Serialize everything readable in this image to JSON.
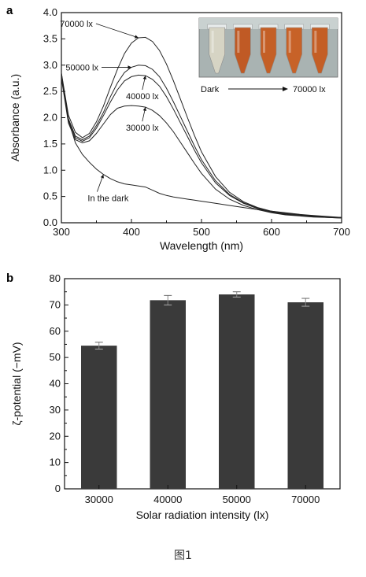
{
  "caption": "图1",
  "chart_data": [
    {
      "type": "line",
      "panel": "a",
      "xlabel": "Wavelength (nm)",
      "ylabel": "Absorbance (a.u.)",
      "xlim": [
        300,
        700
      ],
      "ylim": [
        0,
        4.0
      ],
      "xticks": [
        300,
        400,
        500,
        600,
        700
      ],
      "yticks": [
        0.0,
        0.5,
        1.0,
        1.5,
        2.0,
        2.5,
        3.0,
        3.5,
        4.0
      ],
      "grid": false,
      "series": [
        {
          "name": "70000 lx",
          "x": [
            300,
            310,
            320,
            330,
            340,
            350,
            360,
            370,
            380,
            390,
            400,
            410,
            420,
            430,
            440,
            450,
            460,
            470,
            480,
            490,
            500,
            520,
            540,
            560,
            580,
            600,
            620,
            640,
            660,
            680,
            700
          ],
          "y": [
            2.85,
            2.05,
            1.72,
            1.62,
            1.7,
            1.92,
            2.22,
            2.58,
            2.92,
            3.22,
            3.42,
            3.52,
            3.53,
            3.45,
            3.28,
            3.02,
            2.7,
            2.35,
            2.0,
            1.66,
            1.35,
            0.88,
            0.58,
            0.4,
            0.29,
            0.22,
            0.18,
            0.15,
            0.13,
            0.11,
            0.1
          ]
        },
        {
          "name": "50000 lx",
          "x": [
            300,
            310,
            320,
            330,
            340,
            350,
            360,
            370,
            380,
            390,
            400,
            410,
            420,
            430,
            440,
            450,
            460,
            470,
            480,
            490,
            500,
            520,
            540,
            560,
            580,
            600,
            620,
            640,
            660,
            680,
            700
          ],
          "y": [
            2.8,
            1.98,
            1.65,
            1.58,
            1.65,
            1.85,
            2.1,
            2.4,
            2.66,
            2.86,
            2.96,
            3.0,
            2.99,
            2.92,
            2.78,
            2.56,
            2.3,
            2.02,
            1.74,
            1.46,
            1.2,
            0.8,
            0.54,
            0.38,
            0.28,
            0.21,
            0.17,
            0.14,
            0.12,
            0.11,
            0.1
          ]
        },
        {
          "name": "40000 lx",
          "x": [
            300,
            310,
            320,
            330,
            340,
            350,
            360,
            370,
            380,
            390,
            400,
            410,
            420,
            430,
            440,
            450,
            460,
            470,
            480,
            490,
            500,
            520,
            540,
            560,
            580,
            600,
            620,
            640,
            660,
            680,
            700
          ],
          "y": [
            2.78,
            1.95,
            1.62,
            1.55,
            1.62,
            1.8,
            2.04,
            2.3,
            2.53,
            2.7,
            2.78,
            2.81,
            2.8,
            2.73,
            2.6,
            2.4,
            2.16,
            1.9,
            1.64,
            1.38,
            1.14,
            0.76,
            0.52,
            0.37,
            0.27,
            0.2,
            0.16,
            0.14,
            0.12,
            0.1,
            0.09
          ]
        },
        {
          "name": "30000 lx",
          "x": [
            300,
            310,
            320,
            330,
            340,
            350,
            360,
            370,
            380,
            390,
            400,
            410,
            420,
            430,
            440,
            450,
            460,
            470,
            480,
            490,
            500,
            520,
            540,
            560,
            580,
            600,
            620,
            640,
            660,
            680,
            700
          ],
          "y": [
            2.75,
            1.9,
            1.58,
            1.52,
            1.56,
            1.7,
            1.88,
            2.06,
            2.18,
            2.22,
            2.23,
            2.22,
            2.2,
            2.14,
            2.04,
            1.9,
            1.73,
            1.53,
            1.33,
            1.13,
            0.94,
            0.64,
            0.45,
            0.33,
            0.25,
            0.19,
            0.15,
            0.13,
            0.11,
            0.1,
            0.09
          ]
        },
        {
          "name": "In the dark",
          "x": [
            300,
            310,
            320,
            330,
            340,
            350,
            360,
            370,
            380,
            390,
            400,
            410,
            420,
            430,
            440,
            450,
            460,
            470,
            480,
            490,
            500,
            520,
            540,
            560,
            580,
            600,
            620,
            640,
            660,
            680,
            700
          ],
          "y": [
            2.85,
            1.95,
            1.52,
            1.3,
            1.15,
            1.02,
            0.92,
            0.84,
            0.78,
            0.74,
            0.72,
            0.7,
            0.68,
            0.62,
            0.56,
            0.52,
            0.49,
            0.47,
            0.45,
            0.43,
            0.41,
            0.37,
            0.33,
            0.29,
            0.25,
            0.22,
            0.19,
            0.16,
            0.14,
            0.12,
            0.1
          ]
        }
      ],
      "annotations": [
        {
          "text": "70000 lx",
          "series": "70000 lx",
          "at_x": 410
        },
        {
          "text": "50000 lx",
          "series": "50000 lx",
          "at_x": 400
        },
        {
          "text": "40000 lx",
          "series": "40000 lx",
          "at_x": 420
        },
        {
          "text": "30000 lx",
          "series": "30000 lx",
          "at_x": 420
        },
        {
          "text": "In the dark",
          "series": "In the dark",
          "at_x": 360
        }
      ],
      "inset": {
        "left_label": "Dark",
        "right_label": "70000 lx",
        "tubes": [
          {
            "liquid": "#d9d6c6"
          },
          {
            "liquid": "#c2561e"
          },
          {
            "liquid": "#c65b1f"
          },
          {
            "liquid": "#c95e21"
          },
          {
            "liquid": "#c65a1e"
          }
        ]
      }
    },
    {
      "type": "bar",
      "panel": "b",
      "xlabel": "Solar radiation intensity (lx)",
      "ylabel": "ζ-potential (−mV)",
      "categories": [
        "30000",
        "40000",
        "50000",
        "70000"
      ],
      "values": [
        54.5,
        71.8,
        74.0,
        71.0
      ],
      "errors": [
        1.3,
        1.8,
        1.0,
        1.5
      ],
      "ylim": [
        0,
        80
      ],
      "yticks": [
        0,
        10,
        20,
        30,
        40,
        50,
        60,
        70,
        80
      ],
      "bar_color": "#3a3a3a",
      "grid": false
    }
  ]
}
